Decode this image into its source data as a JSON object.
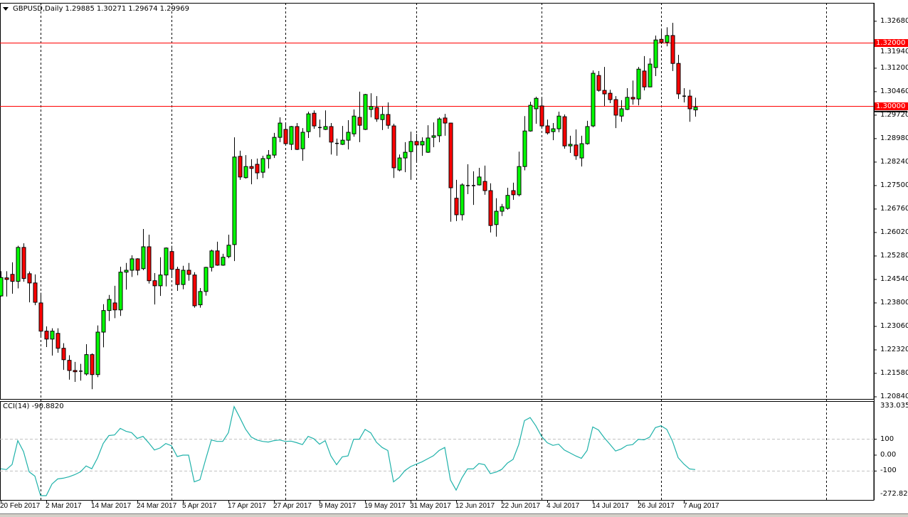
{
  "header": {
    "symbol": "GBPUSD,Daily",
    "open": "1.29885",
    "high": "1.30271",
    "low": "1.29674",
    "close": "1.29969"
  },
  "colors": {
    "bull": "#00ff00",
    "bear": "#ff0000",
    "hline": "#ff0000",
    "cci": "#20b2aa",
    "level": "#c0c0c0",
    "grid_sep": "#000000"
  },
  "price_axis": {
    "ticks": [
      "1.32680",
      "1.31940",
      "1.31200",
      "1.30460",
      "1.29720",
      "1.28980",
      "1.28240",
      "1.27500",
      "1.26760",
      "1.26020",
      "1.25280",
      "1.24540",
      "1.23800",
      "1.23060",
      "1.22320",
      "1.21580",
      "1.20840"
    ],
    "ylim": [
      1.2075,
      1.3326
    ]
  },
  "horizontal_lines": [
    {
      "value": 1.32,
      "label": "1.32000"
    },
    {
      "value": 1.3,
      "label": "1.30000"
    }
  ],
  "indicator": {
    "title": "CCI(14) -90.8820",
    "max_label": "333.0353",
    "min_label": "-272.8287",
    "ylim": [
      -272.8287,
      333.0353
    ],
    "levels": [
      {
        "value": 100,
        "label": "100"
      },
      {
        "value": 0,
        "label": "0.00"
      },
      {
        "value": -100,
        "label": "-100"
      }
    ],
    "values": [
      -86,
      -91,
      -59,
      91,
      23,
      -105,
      -132,
      -255,
      -255,
      -182,
      -150,
      -145,
      -136,
      -123,
      -105,
      -68,
      -86,
      -18,
      73,
      123,
      127,
      168,
      150,
      141,
      105,
      118,
      77,
      32,
      45,
      73,
      59,
      -9,
      0,
      0,
      -168,
      -155,
      -27,
      95,
      86,
      86,
      141,
      305,
      236,
      164,
      114,
      95,
      86,
      82,
      91,
      95,
      86,
      88,
      78,
      66,
      118,
      103,
      69,
      91,
      -5,
      -60,
      -11,
      -5,
      100,
      100,
      162,
      140,
      81,
      48,
      29,
      -168,
      -141,
      -97,
      -72,
      -57,
      -42,
      -23,
      -4,
      29,
      48,
      -156,
      -220,
      -144,
      -87,
      -87,
      -53,
      -60,
      -116,
      -107,
      -90,
      -50,
      -27,
      66,
      217,
      236,
      184,
      118,
      78,
      61,
      69,
      32,
      14,
      -5,
      -20,
      29,
      177,
      158,
      110,
      69,
      26,
      39,
      61,
      66,
      99,
      96,
      113,
      173,
      184,
      162,
      88,
      -16,
      -56,
      -87,
      -90.882
    ]
  },
  "x_labels": [
    {
      "bar": 0,
      "text": "20 Feb 2017"
    },
    {
      "bar": 8,
      "text": "2 Mar 2017"
    },
    {
      "bar": 16,
      "text": "14 Mar 2017"
    },
    {
      "bar": 24,
      "text": "24 Mar 2017"
    },
    {
      "bar": 32,
      "text": "5 Apr 2017"
    },
    {
      "bar": 40,
      "text": "17 Apr 2017"
    },
    {
      "bar": 48,
      "text": "27 Apr 2017"
    },
    {
      "bar": 56,
      "text": "9 May 2017"
    },
    {
      "bar": 64,
      "text": "19 May 2017"
    },
    {
      "bar": 72,
      "text": "31 May 2017"
    },
    {
      "bar": 80,
      "text": "12 Jun 2017"
    },
    {
      "bar": 88,
      "text": "22 Jun 2017"
    },
    {
      "bar": 96,
      "text": "4 Jul 2017"
    },
    {
      "bar": 104,
      "text": "14 Jul 2017"
    },
    {
      "bar": 112,
      "text": "26 Jul 2017"
    },
    {
      "bar": 120,
      "text": "7 Aug 2017"
    }
  ],
  "chart_data": {
    "type": "candlestick",
    "title": "GBPUSD,Daily",
    "ohlc": [
      [
        1.2402,
        1.248,
        1.24,
        1.246
      ],
      [
        1.2459,
        1.248,
        1.24,
        1.2454
      ],
      [
        1.247,
        1.2508,
        1.2409,
        1.2448
      ],
      [
        1.2448,
        1.256,
        1.2426,
        1.2555
      ],
      [
        1.2555,
        1.2568,
        1.2447,
        1.2457
      ],
      [
        1.2472,
        1.2479,
        1.2382,
        1.2443
      ],
      [
        1.2443,
        1.247,
        1.2373,
        1.2382
      ],
      [
        1.238,
        1.2412,
        1.2271,
        1.2291
      ],
      [
        1.2291,
        1.2306,
        1.2241,
        1.2266
      ],
      [
        1.2266,
        1.23,
        1.2214,
        1.2291
      ],
      [
        1.2284,
        1.23,
        1.2223,
        1.2237
      ],
      [
        1.2237,
        1.2253,
        1.2169,
        1.2201
      ],
      [
        1.2199,
        1.2215,
        1.2138,
        1.2167
      ],
      [
        1.2167,
        1.2194,
        1.2131,
        1.2163
      ],
      [
        1.2165,
        1.2188,
        1.2135,
        1.2166
      ],
      [
        1.2156,
        1.225,
        1.2151,
        1.2217
      ],
      [
        1.2217,
        1.2221,
        1.2108,
        1.2154
      ],
      [
        1.2154,
        1.2309,
        1.2146,
        1.2288
      ],
      [
        1.2288,
        1.2376,
        1.224,
        1.2356
      ],
      [
        1.2356,
        1.2405,
        1.2323,
        1.2391
      ],
      [
        1.238,
        1.2434,
        1.2332,
        1.2358
      ],
      [
        1.2358,
        1.2494,
        1.2339,
        1.2477
      ],
      [
        1.2477,
        1.2506,
        1.2422,
        1.2483
      ],
      [
        1.2483,
        1.253,
        1.2462,
        1.2519
      ],
      [
        1.2519,
        1.2521,
        1.2467,
        1.2483
      ],
      [
        1.2488,
        1.2613,
        1.2483,
        1.2557
      ],
      [
        1.2557,
        1.2595,
        1.2441,
        1.245
      ],
      [
        1.245,
        1.2474,
        1.2375,
        1.2434
      ],
      [
        1.2434,
        1.2524,
        1.2402,
        1.2468
      ],
      [
        1.2468,
        1.2555,
        1.2432,
        1.2553
      ],
      [
        1.2542,
        1.256,
        1.246,
        1.2486
      ],
      [
        1.2486,
        1.2494,
        1.2418,
        1.2438
      ],
      [
        1.2438,
        1.2497,
        1.2423,
        1.2483
      ],
      [
        1.2483,
        1.2506,
        1.245,
        1.247
      ],
      [
        1.2468,
        1.2477,
        1.2365,
        1.2371
      ],
      [
        1.2374,
        1.2427,
        1.2365,
        1.2416
      ],
      [
        1.2416,
        1.2494,
        1.2403,
        1.2492
      ],
      [
        1.2492,
        1.2548,
        1.2479,
        1.2544
      ],
      [
        1.2544,
        1.2573,
        1.2497,
        1.2499
      ],
      [
        1.2499,
        1.2535,
        1.2497,
        1.2524
      ],
      [
        1.2526,
        1.2595,
        1.2521,
        1.2562
      ],
      [
        1.2564,
        1.2902,
        1.2512,
        1.284
      ],
      [
        1.2842,
        1.286,
        1.2768,
        1.2777
      ],
      [
        1.2775,
        1.2846,
        1.2772,
        1.281
      ],
      [
        1.281,
        1.2833,
        1.2754,
        1.2804
      ],
      [
        1.2817,
        1.2835,
        1.277,
        1.279
      ],
      [
        1.2792,
        1.2844,
        1.2774,
        1.2835
      ],
      [
        1.2835,
        1.2862,
        1.2804,
        1.2846
      ],
      [
        1.2846,
        1.2916,
        1.2837,
        1.2902
      ],
      [
        1.2902,
        1.2965,
        1.2887,
        1.2947
      ],
      [
        1.2927,
        1.2949,
        1.2878,
        1.2882
      ],
      [
        1.288,
        1.2938,
        1.2862,
        1.2936
      ],
      [
        1.2936,
        1.2947,
        1.2862,
        1.2864
      ],
      [
        1.2866,
        1.2931,
        1.2828,
        1.2918
      ],
      [
        1.292,
        1.2983,
        1.29,
        1.2976
      ],
      [
        1.2978,
        1.2987,
        1.2929,
        1.2938
      ],
      [
        1.2934,
        1.2958,
        1.2902,
        1.2934
      ],
      [
        1.2927,
        1.2987,
        1.2925,
        1.2936
      ],
      [
        1.2936,
        1.2947,
        1.2848,
        1.2887
      ],
      [
        1.2884,
        1.2898,
        1.2844,
        1.2884
      ],
      [
        1.288,
        1.2938,
        1.2878,
        1.2893
      ],
      [
        1.2893,
        1.2956,
        1.2864,
        1.2918
      ],
      [
        1.2913,
        1.299,
        1.2904,
        1.2969
      ],
      [
        1.2965,
        1.3046,
        1.2887,
        1.294
      ],
      [
        1.2927,
        1.3039,
        1.2925,
        1.3037
      ],
      [
        1.299,
        1.3041,
        1.2965,
        1.2999
      ],
      [
        1.2996,
        1.3032,
        1.2951,
        1.296
      ],
      [
        1.2958,
        1.2999,
        1.2925,
        1.2974
      ],
      [
        1.2974,
        1.3012,
        1.2929,
        1.294
      ],
      [
        1.2938,
        1.2945,
        1.2774,
        1.2806
      ],
      [
        1.2799,
        1.2848,
        1.2795,
        1.2837
      ],
      [
        1.2837,
        1.2887,
        1.2792,
        1.2855
      ],
      [
        1.2857,
        1.292,
        1.2768,
        1.2889
      ],
      [
        1.2889,
        1.2913,
        1.2824,
        1.2878
      ],
      [
        1.2878,
        1.2902,
        1.2844,
        1.2889
      ],
      [
        1.2855,
        1.294,
        1.2853,
        1.29
      ],
      [
        1.2902,
        1.2949,
        1.2871,
        1.2907
      ],
      [
        1.2907,
        1.2965,
        1.2887,
        1.296
      ],
      [
        1.2963,
        1.2976,
        1.2907,
        1.2947
      ],
      [
        1.2947,
        1.2948,
        1.2636,
        1.2743
      ],
      [
        1.271,
        1.2768,
        1.2638,
        1.2658
      ],
      [
        1.2658,
        1.2757,
        1.264,
        1.2752
      ],
      [
        1.2751,
        1.2817,
        1.2723,
        1.2751
      ],
      [
        1.2751,
        1.2795,
        1.2689,
        1.2751
      ],
      [
        1.2752,
        1.2806,
        1.275,
        1.2777
      ],
      [
        1.2763,
        1.2813,
        1.2721,
        1.2734
      ],
      [
        1.2734,
        1.2757,
        1.2602,
        1.2624
      ],
      [
        1.2627,
        1.271,
        1.2589,
        1.2669
      ],
      [
        1.2669,
        1.2692,
        1.2654,
        1.2683
      ],
      [
        1.2678,
        1.2743,
        1.2674,
        1.2719
      ],
      [
        1.2734,
        1.2759,
        1.2705,
        1.2721
      ],
      [
        1.2721,
        1.2857,
        1.2716,
        1.281
      ],
      [
        1.281,
        1.2969,
        1.2798,
        1.2922
      ],
      [
        1.2922,
        1.3014,
        1.292,
        1.3003
      ],
      [
        1.2992,
        1.303,
        1.2945,
        1.3025
      ],
      [
        1.3001,
        1.303,
        1.2932,
        1.2938
      ],
      [
        1.2938,
        1.2958,
        1.2911,
        1.2916
      ],
      [
        1.292,
        1.2947,
        1.2893,
        1.2929
      ],
      [
        1.2929,
        1.2983,
        1.2918,
        1.2969
      ],
      [
        1.2967,
        1.2974,
        1.2866,
        1.2875
      ],
      [
        1.2875,
        1.2907,
        1.2853,
        1.288
      ],
      [
        1.2878,
        1.2927,
        1.2831,
        1.2844
      ],
      [
        1.2837,
        1.2907,
        1.281,
        1.2882
      ],
      [
        1.2882,
        1.2954,
        1.2879,
        1.2936
      ],
      [
        1.2938,
        1.3113,
        1.2934,
        1.3104
      ],
      [
        1.3097,
        1.3111,
        1.3046,
        1.305
      ],
      [
        1.305,
        1.3124,
        1.3001,
        1.3039
      ],
      [
        1.3041,
        1.3052,
        1.301,
        1.3021
      ],
      [
        1.3021,
        1.3032,
        1.2931,
        1.2972
      ],
      [
        1.2969,
        1.3019,
        1.2951,
        1.2992
      ],
      [
        1.299,
        1.3057,
        1.2988,
        1.3028
      ],
      [
        1.3028,
        1.3081,
        1.3005,
        1.3023
      ],
      [
        1.3023,
        1.3124,
        1.3003,
        1.3117
      ],
      [
        1.3111,
        1.3158,
        1.305,
        1.3061
      ],
      [
        1.3061,
        1.3151,
        1.306,
        1.3133
      ],
      [
        1.3122,
        1.3223,
        1.3095,
        1.3209
      ],
      [
        1.3211,
        1.3245,
        1.3196,
        1.3202
      ],
      [
        1.3202,
        1.3249,
        1.3189,
        1.3223
      ],
      [
        1.3223,
        1.3263,
        1.3111,
        1.3135
      ],
      [
        1.3135,
        1.3162,
        1.3023,
        1.3039
      ],
      [
        1.3033,
        1.3057,
        1.3012,
        1.3033
      ],
      [
        1.3032,
        1.3052,
        1.2951,
        1.2992
      ],
      [
        1.29885,
        1.30271,
        1.29674,
        1.29969
      ]
    ],
    "ylim": [
      1.2075,
      1.3326
    ],
    "period_separators_at_bars": [
      7,
      30,
      50,
      73,
      95,
      116,
      145
    ],
    "grid": false
  }
}
